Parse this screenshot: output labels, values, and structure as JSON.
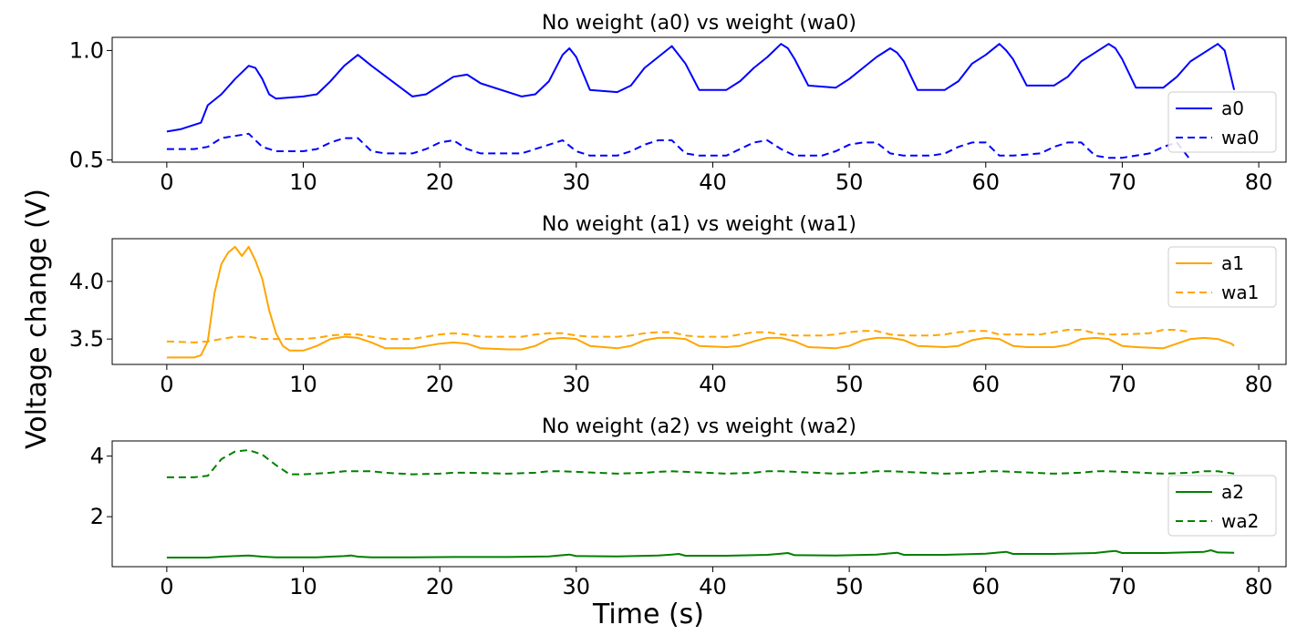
{
  "chart_data": {
    "type": "line",
    "ylabel": "Voltage change (V)",
    "xlabel": "Time (s)",
    "xlim": [
      -4,
      82
    ],
    "xticks": [
      0,
      10,
      20,
      30,
      40,
      50,
      60,
      70,
      80
    ],
    "panels": [
      {
        "title": "No weight (a0) vs weight (wa0)",
        "ylim": [
          0.49,
          1.06
        ],
        "yticks": [
          0.5,
          1.0
        ],
        "ytick_labels": [
          "0.5",
          "1.0"
        ],
        "legend_position": "right",
        "series": [
          {
            "name": "a0",
            "color": "#0000ff",
            "dash": "solid",
            "x": [
              0,
              1,
              2,
              2.5,
              3,
              4,
              5,
              6,
              6.5,
              7,
              7.5,
              8,
              10,
              11,
              12,
              13,
              14,
              15,
              18,
              19,
              21,
              22,
              23,
              26,
              27,
              28,
              29,
              29.5,
              30,
              31,
              33,
              34,
              35,
              36,
              37,
              37.5,
              38,
              39,
              41,
              42,
              43,
              44,
              45,
              45.5,
              46,
              47,
              49,
              50,
              51,
              52,
              53,
              53.5,
              54,
              55,
              57,
              58,
              59,
              60,
              61,
              61.5,
              62,
              63,
              65,
              66,
              67,
              68,
              69,
              69.5,
              70,
              71,
              73,
              74,
              75,
              76,
              77,
              77.5,
              78.2
            ],
            "y": [
              0.63,
              0.64,
              0.66,
              0.67,
              0.75,
              0.8,
              0.87,
              0.93,
              0.92,
              0.87,
              0.8,
              0.78,
              0.79,
              0.8,
              0.86,
              0.93,
              0.98,
              0.93,
              0.79,
              0.8,
              0.88,
              0.89,
              0.85,
              0.79,
              0.8,
              0.86,
              0.98,
              1.01,
              0.97,
              0.82,
              0.81,
              0.84,
              0.92,
              0.97,
              1.02,
              0.98,
              0.94,
              0.82,
              0.82,
              0.86,
              0.92,
              0.97,
              1.03,
              1.01,
              0.96,
              0.84,
              0.83,
              0.87,
              0.92,
              0.97,
              1.01,
              0.99,
              0.95,
              0.82,
              0.82,
              0.86,
              0.94,
              0.98,
              1.03,
              1.0,
              0.96,
              0.84,
              0.84,
              0.88,
              0.95,
              0.99,
              1.03,
              1.01,
              0.96,
              0.83,
              0.83,
              0.88,
              0.95,
              0.99,
              1.03,
              1.0,
              0.82
            ]
          },
          {
            "name": "wa0",
            "color": "#0000ff",
            "dash": "dashed",
            "x": [
              0,
              2,
              3,
              4,
              5,
              6,
              7,
              8,
              9,
              10,
              11,
              12,
              13,
              14,
              15,
              16,
              18,
              19,
              20,
              21,
              22,
              23,
              25,
              26,
              27,
              28,
              29,
              30,
              31,
              33,
              34,
              35,
              36,
              37,
              38,
              39,
              41,
              42,
              43,
              44,
              45,
              46,
              48,
              49,
              50,
              51,
              52,
              53,
              54,
              56,
              57,
              58,
              59,
              60,
              61,
              62,
              64,
              65,
              66,
              67,
              68,
              69,
              70,
              72,
              73,
              74,
              75
            ],
            "y": [
              0.55,
              0.55,
              0.56,
              0.6,
              0.61,
              0.62,
              0.56,
              0.54,
              0.54,
              0.54,
              0.55,
              0.58,
              0.6,
              0.6,
              0.54,
              0.53,
              0.53,
              0.55,
              0.58,
              0.59,
              0.55,
              0.53,
              0.53,
              0.53,
              0.55,
              0.57,
              0.59,
              0.54,
              0.52,
              0.52,
              0.54,
              0.57,
              0.59,
              0.59,
              0.53,
              0.52,
              0.52,
              0.55,
              0.58,
              0.59,
              0.55,
              0.52,
              0.52,
              0.54,
              0.57,
              0.58,
              0.58,
              0.53,
              0.52,
              0.52,
              0.53,
              0.56,
              0.58,
              0.58,
              0.52,
              0.52,
              0.53,
              0.56,
              0.58,
              0.58,
              0.52,
              0.51,
              0.51,
              0.53,
              0.56,
              0.58,
              0.5
            ]
          }
        ]
      },
      {
        "title": "No weight (a1) vs weight (wa1)",
        "ylim": [
          3.28,
          4.37
        ],
        "yticks": [
          3.5,
          4.0
        ],
        "ytick_labels": [
          "3.5",
          "4.0"
        ],
        "legend_position": "upper right",
        "series": [
          {
            "name": "a1",
            "color": "#ffa500",
            "dash": "solid",
            "x": [
              0,
              2,
              2.5,
              3,
              3.5,
              4,
              4.5,
              5,
              5.5,
              6,
              6.5,
              7,
              7.5,
              8,
              8.5,
              9,
              10,
              11,
              12,
              13,
              14,
              15,
              16,
              18,
              19,
              20,
              21,
              22,
              23,
              25,
              26,
              27,
              28,
              29,
              30,
              31,
              33,
              34,
              35,
              36,
              37,
              38,
              39,
              41,
              42,
              43,
              44,
              45,
              46,
              47,
              49,
              50,
              51,
              52,
              53,
              54,
              55,
              57,
              58,
              59,
              60,
              61,
              62,
              63,
              65,
              66,
              67,
              68,
              69,
              70,
              71,
              73,
              74,
              75,
              76,
              77,
              78,
              78.2
            ],
            "y": [
              3.34,
              3.34,
              3.36,
              3.48,
              3.9,
              4.15,
              4.25,
              4.3,
              4.22,
              4.3,
              4.18,
              4.02,
              3.75,
              3.55,
              3.44,
              3.4,
              3.4,
              3.44,
              3.5,
              3.52,
              3.51,
              3.47,
              3.42,
              3.42,
              3.44,
              3.46,
              3.47,
              3.46,
              3.42,
              3.41,
              3.41,
              3.44,
              3.5,
              3.51,
              3.5,
              3.44,
              3.42,
              3.44,
              3.49,
              3.51,
              3.51,
              3.5,
              3.44,
              3.43,
              3.44,
              3.48,
              3.51,
              3.51,
              3.48,
              3.43,
              3.42,
              3.44,
              3.49,
              3.51,
              3.51,
              3.49,
              3.44,
              3.43,
              3.44,
              3.49,
              3.51,
              3.5,
              3.44,
              3.43,
              3.43,
              3.45,
              3.5,
              3.51,
              3.5,
              3.44,
              3.43,
              3.42,
              3.46,
              3.5,
              3.51,
              3.5,
              3.46,
              3.44
            ]
          },
          {
            "name": "wa1",
            "color": "#ffa500",
            "dash": "dashed",
            "x": [
              0,
              2,
              3,
              4,
              5,
              6,
              7,
              8,
              9,
              10,
              11,
              12,
              13,
              14,
              15,
              16,
              18,
              19,
              20,
              21,
              22,
              23,
              25,
              26,
              27,
              28,
              29,
              30,
              31,
              33,
              34,
              35,
              36,
              37,
              38,
              39,
              41,
              42,
              43,
              44,
              45,
              46,
              48,
              49,
              50,
              51,
              52,
              53,
              54,
              56,
              57,
              58,
              59,
              60,
              61,
              62,
              64,
              65,
              66,
              67,
              68,
              69,
              70,
              72,
              73,
              74,
              75
            ],
            "y": [
              3.48,
              3.47,
              3.48,
              3.5,
              3.52,
              3.52,
              3.5,
              3.5,
              3.5,
              3.5,
              3.51,
              3.53,
              3.54,
              3.54,
              3.52,
              3.5,
              3.5,
              3.52,
              3.54,
              3.55,
              3.54,
              3.52,
              3.52,
              3.52,
              3.54,
              3.55,
              3.55,
              3.53,
              3.52,
              3.52,
              3.53,
              3.55,
              3.56,
              3.56,
              3.53,
              3.52,
              3.52,
              3.54,
              3.56,
              3.56,
              3.54,
              3.53,
              3.53,
              3.54,
              3.56,
              3.57,
              3.57,
              3.54,
              3.53,
              3.53,
              3.54,
              3.56,
              3.57,
              3.57,
              3.54,
              3.54,
              3.54,
              3.56,
              3.58,
              3.58,
              3.55,
              3.54,
              3.54,
              3.55,
              3.58,
              3.58,
              3.56
            ]
          }
        ]
      },
      {
        "title": "No weight (a2) vs weight (wa2)",
        "ylim": [
          0.35,
          4.5
        ],
        "yticks": [
          2,
          4
        ],
        "ytick_labels": [
          "2",
          "4"
        ],
        "legend_position": "right",
        "series": [
          {
            "name": "a2",
            "color": "#008000",
            "dash": "solid",
            "x": [
              0,
              3,
              4,
              5,
              6,
              7,
              8,
              10,
              11,
              12,
              13,
              13.5,
              14,
              15,
              18,
              21,
              25,
              28,
              29,
              29.5,
              30,
              33,
              36,
              37,
              37.5,
              38,
              41,
              44,
              45,
              45.5,
              46,
              49,
              52,
              53,
              53.5,
              54,
              57,
              60,
              61,
              61.5,
              62,
              65,
              68,
              69,
              69.5,
              70,
              73,
              76,
              76.5,
              77,
              78.2
            ],
            "y": [
              0.65,
              0.65,
              0.68,
              0.7,
              0.72,
              0.68,
              0.66,
              0.66,
              0.66,
              0.68,
              0.7,
              0.72,
              0.68,
              0.66,
              0.66,
              0.67,
              0.67,
              0.69,
              0.73,
              0.75,
              0.7,
              0.69,
              0.72,
              0.75,
              0.77,
              0.71,
              0.71,
              0.74,
              0.78,
              0.8,
              0.73,
              0.72,
              0.75,
              0.79,
              0.81,
              0.74,
              0.74,
              0.78,
              0.82,
              0.84,
              0.77,
              0.77,
              0.8,
              0.85,
              0.87,
              0.8,
              0.8,
              0.84,
              0.89,
              0.82,
              0.81
            ]
          },
          {
            "name": "wa2",
            "color": "#008000",
            "dash": "dashed",
            "x": [
              0,
              2,
              3,
              4,
              5,
              6,
              7,
              8,
              9,
              10,
              12,
              13,
              14,
              15,
              16,
              18,
              20,
              21,
              22,
              25,
              27,
              28,
              29,
              30,
              33,
              35,
              36,
              37,
              38,
              41,
              43,
              44,
              45,
              46,
              49,
              51,
              52,
              53,
              54,
              57,
              59,
              60,
              61,
              62,
              65,
              67,
              68,
              69,
              70,
              73,
              75,
              76,
              77,
              78.2
            ],
            "y": [
              3.3,
              3.3,
              3.35,
              3.9,
              4.15,
              4.2,
              4.05,
              3.7,
              3.4,
              3.4,
              3.45,
              3.5,
              3.5,
              3.5,
              3.45,
              3.4,
              3.42,
              3.45,
              3.45,
              3.42,
              3.45,
              3.5,
              3.5,
              3.48,
              3.42,
              3.45,
              3.48,
              3.5,
              3.48,
              3.42,
              3.45,
              3.5,
              3.5,
              3.48,
              3.42,
              3.45,
              3.5,
              3.5,
              3.48,
              3.42,
              3.45,
              3.5,
              3.5,
              3.48,
              3.42,
              3.45,
              3.5,
              3.5,
              3.48,
              3.42,
              3.45,
              3.5,
              3.5,
              3.42
            ]
          }
        ]
      }
    ]
  }
}
